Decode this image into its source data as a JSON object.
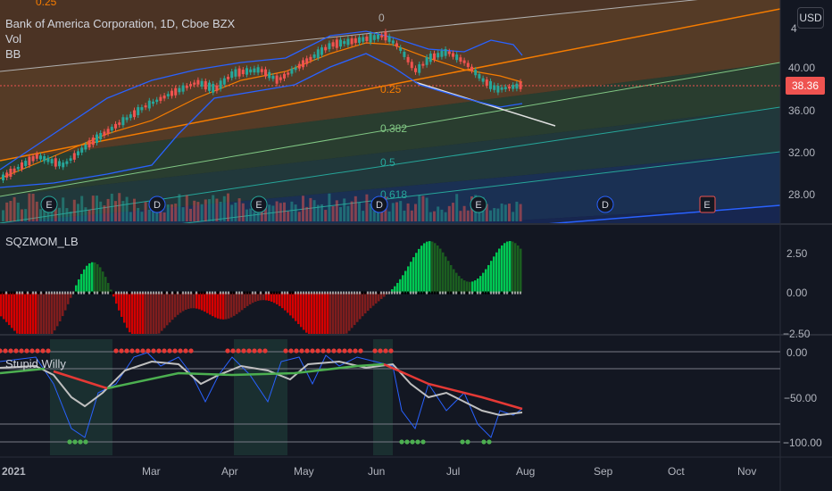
{
  "legend": {
    "title": "Bank of America Corporation, 1D, Cboe BZX",
    "vol": "Vol",
    "bb": "BB",
    "sqzmom": "SQZMOM_LB",
    "willy": "Stupid Willy"
  },
  "currency": "USD",
  "last_price": "38.36",
  "price_axis": [
    "4",
    "40.00",
    "36.00",
    "32.00",
    "28.00"
  ],
  "sqz_axis": [
    "2.50",
    "0.00",
    "−2.50"
  ],
  "willy_axis": [
    "0.00",
    "−50.00",
    "−100.00"
  ],
  "time_axis": [
    "2021",
    "Mar",
    "Apr",
    "May",
    "Jun",
    "Jul",
    "Aug",
    "Sep",
    "Oct",
    "Nov"
  ],
  "fib_labels": [
    "0.25",
    "0",
    "0.25",
    "0.382",
    "0.5",
    "0.618"
  ],
  "events": [
    "E",
    "D",
    "E",
    "D",
    "E",
    "D",
    "E"
  ],
  "colors": {
    "background": "#131722",
    "bull": "#26a69a",
    "bear": "#ef5350",
    "bb": "#2962ff",
    "squeeze_up": "#00c853",
    "squeeze_down": "#d50000",
    "willy_signal_up": "#4caf50",
    "willy_signal_down": "#e53935"
  }
}
